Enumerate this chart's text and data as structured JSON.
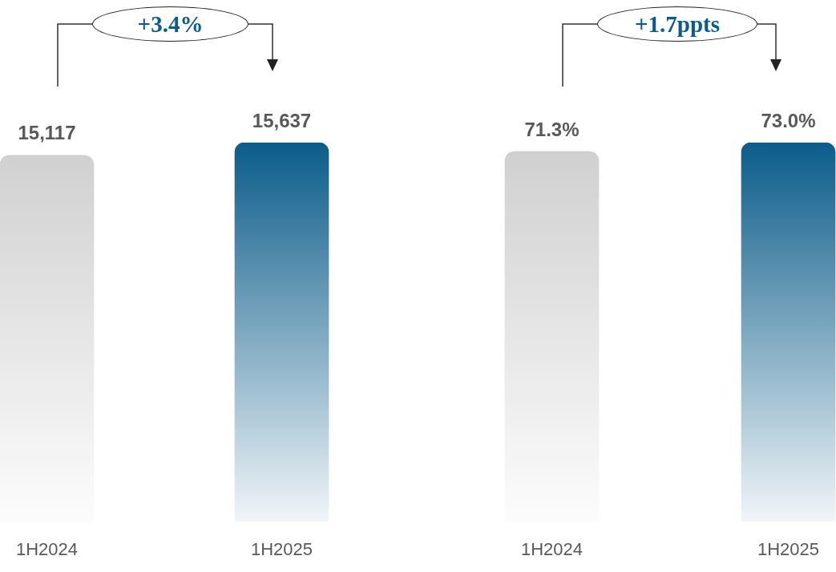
{
  "chart_data": [
    {
      "type": "bar",
      "categories": [
        "1H2024",
        "1H2025"
      ],
      "values": [
        15117,
        15637
      ],
      "colors": [
        "#cfcfcf",
        "#0b5c8a"
      ],
      "value_labels": [
        "15,117",
        "15,637"
      ],
      "annotations": [
        "+3.4%"
      ]
    },
    {
      "type": "bar",
      "categories": [
        "1H2024",
        "1H2025"
      ],
      "values": [
        71.3,
        73.0
      ],
      "colors": [
        "#cfcfcf",
        "#0b5c8a"
      ],
      "value_labels": [
        "71.3%",
        "73.0%"
      ],
      "annotations": [
        "+1.7ppts"
      ]
    }
  ]
}
